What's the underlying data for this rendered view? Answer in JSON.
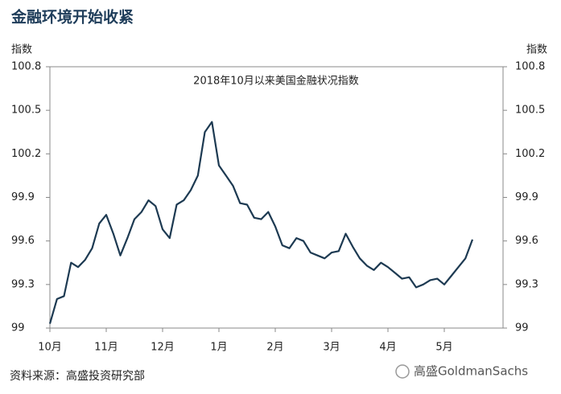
{
  "chart_data": {
    "type": "line",
    "title": "金融环境开始收紧",
    "subtitle": "2018年10月以来美国金融状况指数",
    "ylabel": "指数",
    "y2label": "指数",
    "source": "资料来源：高盛投资研究部",
    "watermark": "高盛GoldmanSachs",
    "categories": [
      "10月",
      null,
      null,
      null,
      null,
      null,
      null,
      null,
      "11月",
      null,
      null,
      null,
      null,
      null,
      null,
      null,
      "12月",
      null,
      null,
      null,
      null,
      null,
      null,
      null,
      "1月",
      null,
      null,
      null,
      null,
      null,
      null,
      null,
      "2月",
      null,
      null,
      null,
      null,
      null,
      null,
      null,
      "3月",
      null,
      null,
      null,
      null,
      null,
      null,
      null,
      "4月",
      null,
      null,
      null,
      null,
      null,
      null,
      null,
      "5月",
      null,
      null,
      null,
      null
    ],
    "values": [
      99.03,
      99.2,
      99.22,
      99.45,
      99.42,
      99.47,
      99.55,
      99.72,
      99.78,
      99.65,
      99.5,
      99.62,
      99.75,
      99.8,
      99.88,
      99.84,
      99.68,
      99.62,
      99.85,
      99.88,
      99.95,
      100.05,
      100.35,
      100.42,
      100.12,
      100.05,
      99.98,
      99.86,
      99.85,
      99.76,
      99.75,
      99.8,
      99.7,
      99.57,
      99.55,
      99.62,
      99.6,
      99.52,
      99.5,
      99.48,
      99.52,
      99.53,
      99.65,
      99.56,
      99.48,
      99.43,
      99.4,
      99.45,
      99.42,
      99.38,
      99.34,
      99.35,
      99.28,
      99.3,
      99.33,
      99.34,
      99.3,
      99.36,
      99.42,
      99.48,
      99.61
    ],
    "color": "#1d3a52",
    "ylim": [
      99,
      100.8
    ],
    "yticks": [
      99,
      99.3,
      99.6,
      99.9,
      100.2,
      100.5,
      100.8
    ],
    "y2lim": [
      99,
      100.8
    ],
    "y2ticks": [
      99,
      99.3,
      99.6,
      99.9,
      100.2,
      100.5,
      100.8
    ]
  }
}
